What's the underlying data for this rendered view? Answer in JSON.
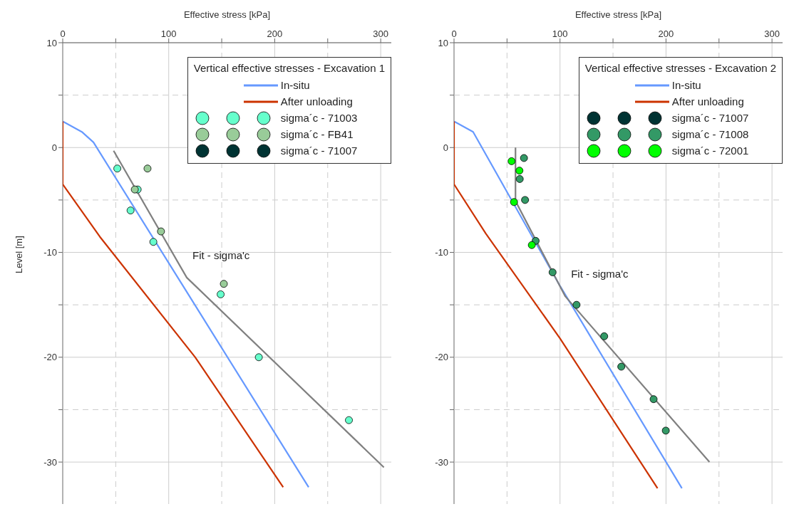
{
  "chart_data": [
    {
      "type": "line",
      "xlabel": "Effective stress [kPa]",
      "ylabel": "Level [m]",
      "legend_title": "Vertical effective stresses - Excavation 1",
      "legend": "top right",
      "grid": true,
      "line_style": "solid",
      "xlim": [
        0,
        310
      ],
      "xticks": [
        0,
        {
          "value": 50,
          "label": null
        },
        100,
        {
          "value": 150,
          "label": null
        },
        200,
        {
          "value": 250,
          "label": null
        },
        300
      ],
      "ylim": [
        -34,
        10
      ],
      "yticks": [
        10,
        {
          "value": 5,
          "label": null
        },
        0,
        {
          "value": -5,
          "label": null
        },
        -10,
        {
          "value": -15,
          "label": null
        },
        -20,
        {
          "value": -25,
          "label": null
        },
        -30
      ],
      "annotations": [
        {
          "text": "Fit - sigma'c",
          "x": 117,
          "y": -12.4
        }
      ],
      "series": [
        {
          "name": "In-situ",
          "type": "line",
          "color": "#6699ff",
          "x": [
            0,
            18,
            29,
            232
          ],
          "values": [
            2.5,
            1.5,
            0.5,
            -32.4
          ]
        },
        {
          "name": "After unloading",
          "type": "line",
          "color": "#cc3300",
          "x": [
            0,
            0,
            35,
            125,
            208
          ],
          "values": [
            2.5,
            -3.5,
            -8.5,
            -20,
            -32.4
          ]
        },
        {
          "type": "line",
          "color": "#808080",
          "x": [
            48,
            117,
            303
          ],
          "values": [
            -0.3,
            -12.4,
            -30.5
          ]
        },
        {
          "name": "sigma´c - 71003",
          "type": "scatter",
          "marker": "circle",
          "color": "#66ffcc",
          "x": [
            51.5,
            70.7,
            64,
            85.5,
            149,
            185,
            270
          ],
          "values": [
            -2,
            -4,
            -6,
            -9,
            -14,
            -20,
            -26
          ]
        },
        {
          "name": "sigma´c - FB41",
          "type": "scatter",
          "marker": "circle",
          "color": "#99cc99",
          "x": [
            80,
            68,
            92.7,
            152
          ],
          "values": [
            -2,
            -4,
            -8,
            -13
          ]
        },
        {
          "name": "sigma´c - 71007",
          "type": "scatter",
          "marker": "circle",
          "color": "#003333"
        }
      ]
    },
    {
      "type": "line",
      "xlabel": "Effective stress [kPa]",
      "legend_title": "Vertical effective stresses - Excavation 2",
      "legend": "top right",
      "grid": true,
      "line_style": "solid",
      "xlim": [
        0,
        310
      ],
      "xticks": [
        0,
        {
          "value": 50,
          "label": null
        },
        100,
        {
          "value": 150,
          "label": null
        },
        200,
        {
          "value": 250,
          "label": null
        },
        300
      ],
      "ylim": [
        -34,
        10
      ],
      "yticks": [
        10,
        {
          "value": 5,
          "label": null
        },
        0,
        {
          "value": -5,
          "label": null
        },
        -10,
        {
          "value": -15,
          "label": null
        },
        -20,
        {
          "value": -25,
          "label": null
        },
        -30
      ],
      "annotations": [
        {
          "text": "Fit - sigma'c",
          "x": 105,
          "y": -14.2
        }
      ],
      "series": [
        {
          "name": "In-situ",
          "type": "line",
          "color": "#6699ff",
          "x": [
            0,
            18,
            100,
            215
          ],
          "values": [
            2.5,
            1.5,
            -13.2,
            -32.5
          ]
        },
        {
          "name": "After unloading",
          "type": "line",
          "color": "#cc3300",
          "x": [
            0,
            0,
            30,
            100,
            192
          ],
          "values": [
            2.5,
            -3.5,
            -8.2,
            -18.2,
            -32.5
          ]
        },
        {
          "type": "line",
          "color": "#808080",
          "x": [
            58,
            58,
            105,
            241
          ],
          "values": [
            0,
            -5.1,
            -14.2,
            -30
          ]
        },
        {
          "name": "sigma´c - 71007",
          "type": "scatter",
          "marker": "circle",
          "color": "#003333"
        },
        {
          "name": "sigma´c - 71008",
          "type": "scatter",
          "marker": "circle",
          "color": "#339966",
          "x": [
            66,
            62,
            67,
            77,
            93,
            115.6,
            141.7,
            157.8,
            188.3,
            199.8
          ],
          "values": [
            -1,
            -3,
            -5,
            -8.9,
            -11.9,
            -15,
            -18,
            -20.9,
            -24,
            -27
          ]
        },
        {
          "name": "sigma´c - 72001",
          "type": "scatter",
          "marker": "circle",
          "color": "#00ff00",
          "x": [
            54.3,
            61.7,
            56.6,
            73.4
          ],
          "values": [
            -1.3,
            -2.2,
            -5.2,
            -9.3
          ]
        }
      ]
    }
  ]
}
